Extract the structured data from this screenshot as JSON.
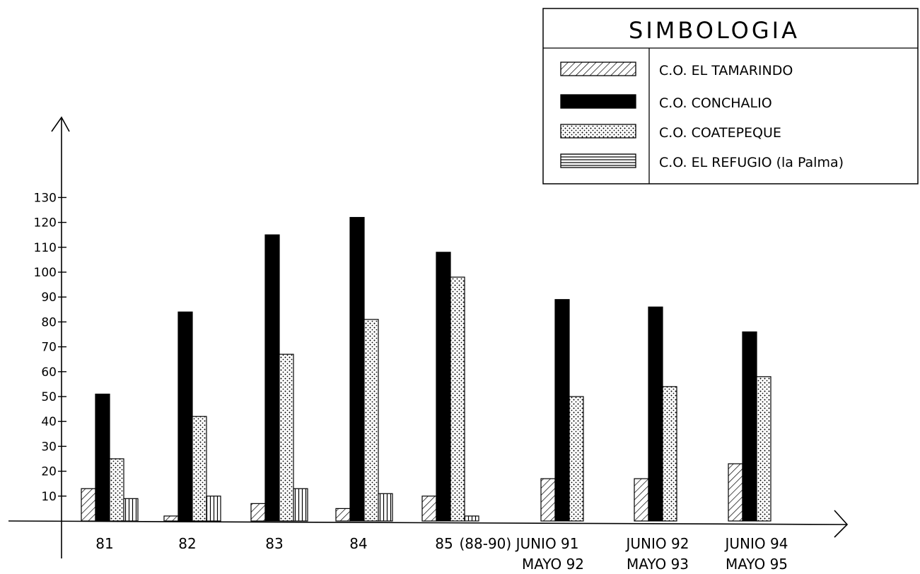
{
  "chart_data": {
    "type": "bar",
    "title": "",
    "xlabel": "",
    "ylabel": "",
    "ylim": [
      0,
      135
    ],
    "y_ticks": [
      10,
      20,
      30,
      40,
      50,
      60,
      70,
      80,
      90,
      100,
      110,
      120,
      130
    ],
    "y_tick_labels": [
      "10",
      "20",
      "30",
      "40",
      "50",
      "60",
      "70",
      "80",
      "90",
      "100",
      "110",
      "120",
      "130"
    ],
    "grid": false,
    "legend_position": "top-right",
    "legend_title": "SIMBOLOGIA",
    "categories": [
      {
        "line1": "81",
        "line2": ""
      },
      {
        "line1": "82",
        "line2": ""
      },
      {
        "line1": "83",
        "line2": ""
      },
      {
        "line1": "84",
        "line2": ""
      },
      {
        "line1": "85",
        "line2": ""
      },
      {
        "line1": "(88-90) JUNIO 91",
        "line2": "MAYO 92"
      },
      {
        "line1": "JUNIO 92",
        "line2": "MAYO 93"
      },
      {
        "line1": "JUNIO 94",
        "line2": "MAYO 95"
      }
    ],
    "series": [
      {
        "name": "C.O. EL TAMARINDO",
        "pattern": "diagonal-hatch",
        "values": [
          13,
          2,
          7,
          5,
          10,
          17,
          17,
          23
        ]
      },
      {
        "name": "C.O. CONCHALIO",
        "pattern": "solid-black",
        "values": [
          51,
          84,
          115,
          122,
          108,
          89,
          86,
          76
        ]
      },
      {
        "name": "C.O. COATEPEQUE",
        "pattern": "dotted",
        "values": [
          25,
          42,
          67,
          81,
          98,
          50,
          54,
          58
        ]
      },
      {
        "name": "C.O. EL REFUGIO (la Palma)",
        "pattern": "vertical-lines",
        "legend_pattern": "horizontal-lines",
        "values": [
          9,
          10,
          13,
          11,
          2,
          null,
          null,
          null
        ]
      }
    ]
  }
}
